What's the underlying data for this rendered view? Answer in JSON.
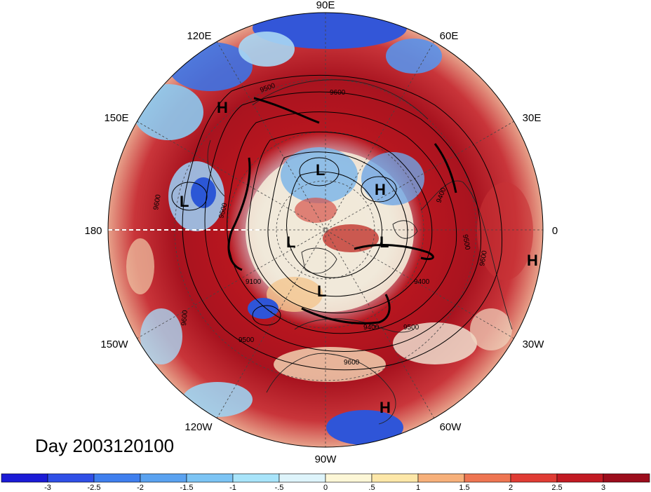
{
  "title": "Day 2003120100",
  "longitude_labels": [
    "90E",
    "60E",
    "30E",
    "0",
    "30W",
    "60W",
    "90W",
    "120W",
    "150W",
    "180",
    "150E",
    "120E"
  ],
  "pressure_centers": [
    {
      "type": "H",
      "label": "H"
    },
    {
      "type": "H",
      "label": "H"
    },
    {
      "type": "H",
      "label": "H"
    },
    {
      "type": "H",
      "label": "H"
    },
    {
      "type": "L",
      "label": "L"
    },
    {
      "type": "L",
      "label": "L"
    },
    {
      "type": "L",
      "label": "L"
    },
    {
      "type": "L",
      "label": "L"
    },
    {
      "type": "L",
      "label": "L"
    }
  ],
  "contour_labels": [
    "9600",
    "9500",
    "9400",
    "9100",
    "9600",
    "9500",
    "9400",
    "9500",
    "9600",
    "9500",
    "9400",
    "9600",
    "9600",
    "9500"
  ],
  "colorbar": {
    "ticks": [
      "-3",
      "-2.5",
      "-2",
      "-1.5",
      "-1",
      "-.5",
      "0",
      ".5",
      "1",
      "1.5",
      "2",
      "2.5",
      "3"
    ],
    "colors": [
      "#1b1bd6",
      "#2f4fe6",
      "#3f7fee",
      "#5aa2f0",
      "#7cc4f4",
      "#a8e4fa",
      "#def4fb",
      "#fdf7d7",
      "#fde7a8",
      "#f7b07a",
      "#ee7552",
      "#e03c34",
      "#c21a22",
      "#9c0d1c"
    ]
  },
  "colors": {
    "warm_anomaly": "#a8131f",
    "cold_anomaly": "#2f55d8",
    "neutral": "#f6eed6"
  }
}
